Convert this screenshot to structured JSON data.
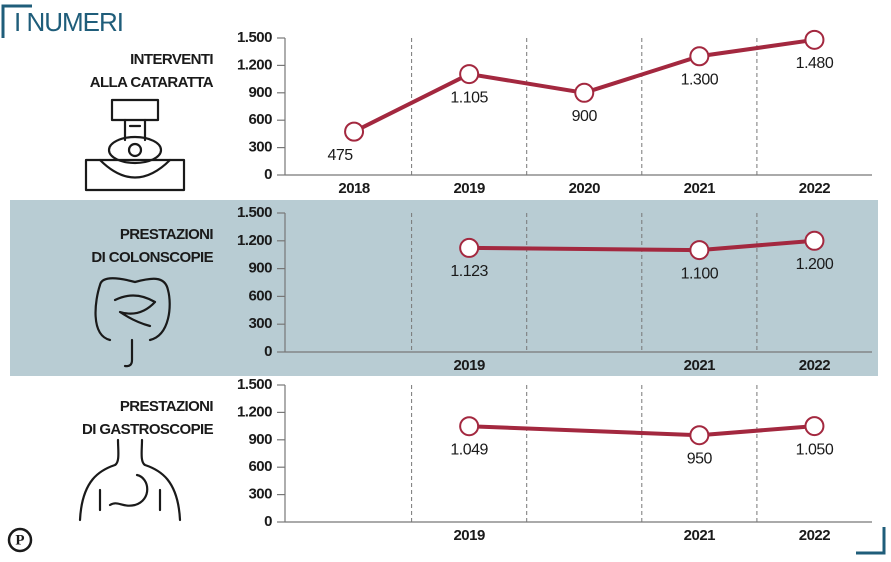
{
  "header": "I NUMERI",
  "logo": "P",
  "chart_data": [
    {
      "type": "line",
      "title": [
        "INTERVENTI",
        "ALLA CATARATTA"
      ],
      "color": "#a3283f",
      "x": [
        2018,
        2019,
        2020,
        2021,
        2022
      ],
      "values": [
        475,
        1105,
        900,
        1300,
        1480
      ],
      "value_labels": [
        "475",
        "1.105",
        "900",
        "1.300",
        "1.480"
      ],
      "xlim": [
        2017.4,
        2022.5
      ],
      "xticks": [
        2018,
        2019,
        2020,
        2021,
        2022
      ],
      "xgrid": [
        2018.5,
        2019.5,
        2020.5,
        2021.5
      ],
      "ylim": [
        0,
        1500
      ],
      "yticks": [
        0,
        300,
        600,
        900,
        {
          "value": 1200,
          "label": "1.200"
        },
        {
          "value": 1500,
          "label": "1.500"
        }
      ]
    },
    {
      "type": "line",
      "title": [
        "PRESTAZIONI",
        "DI COLONSCOPIE"
      ],
      "color": "#a3283f",
      "background": "#b8ccd3",
      "x": [
        2019,
        2021,
        2022
      ],
      "values": [
        1123,
        1100,
        1200
      ],
      "value_labels": [
        "1.123",
        "1.100",
        "1.200"
      ],
      "xlim": [
        2017.4,
        2022.5
      ],
      "xticks": [
        2019,
        2021,
        2022
      ],
      "xgrid": [
        2018.5,
        2019.5,
        2020.5,
        2021.5
      ],
      "ylim": [
        0,
        1500
      ],
      "yticks": [
        0,
        300,
        600,
        900,
        {
          "value": 1200,
          "label": "1.200"
        },
        {
          "value": 1500,
          "label": "1.500"
        }
      ]
    },
    {
      "type": "line",
      "title": [
        "PRESTAZIONI",
        "DI GASTROSCOPIE"
      ],
      "color": "#a3283f",
      "x": [
        2019,
        2021,
        2022
      ],
      "values": [
        1049,
        950,
        1050
      ],
      "value_labels": [
        "1.049",
        "950",
        "1.050"
      ],
      "xlim": [
        2017.4,
        2022.5
      ],
      "xticks": [
        2019,
        2021,
        2022
      ],
      "xgrid": [
        2018.5,
        2019.5,
        2020.5,
        2021.5
      ],
      "ylim": [
        0,
        1500
      ],
      "yticks": [
        0,
        300,
        600,
        900,
        {
          "value": 1200,
          "label": "1.200"
        },
        {
          "value": 1500,
          "label": "1.500"
        }
      ]
    }
  ]
}
